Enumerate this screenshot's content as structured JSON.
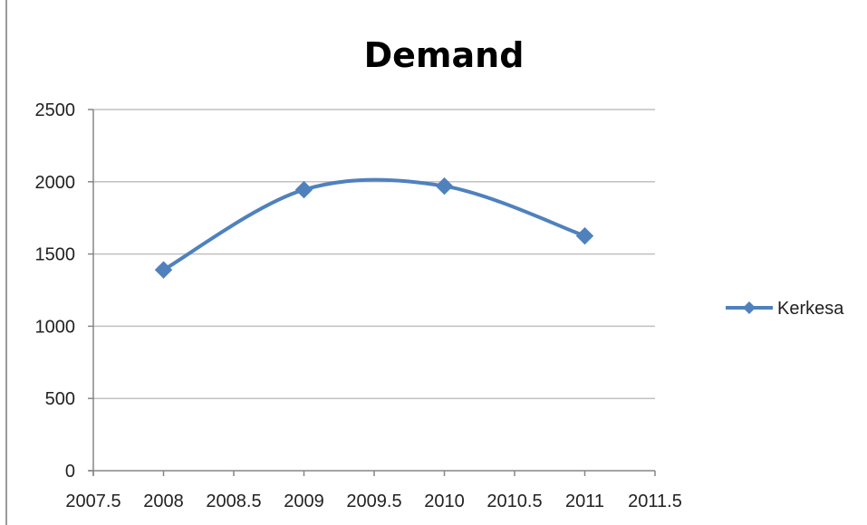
{
  "chart_data": {
    "type": "line",
    "title": "Demand",
    "xlabel": "",
    "ylabel": "",
    "x": [
      2008,
      2009,
      2010,
      2011
    ],
    "series": [
      {
        "name": "Kerkesa",
        "values": [
          1390,
          1945,
          1970,
          1625
        ],
        "color": "#4f81bd",
        "marker": "diamond",
        "smooth": true
      }
    ],
    "xlim": [
      2007.5,
      2011.5
    ],
    "ylim": [
      0,
      2500
    ],
    "x_ticks": [
      2007.5,
      2008,
      2008.5,
      2009,
      2009.5,
      2010,
      2010.5,
      2011,
      2011.5
    ],
    "x_tick_labels": [
      "2007.5",
      "2008",
      "2008.5",
      "2009",
      "2009.5",
      "2010",
      "2010.5",
      "2011",
      "2011.5"
    ],
    "y_ticks": [
      0,
      500,
      1000,
      1500,
      2000,
      2500
    ],
    "y_tick_labels": [
      "0",
      "500",
      "1000",
      "1500",
      "2000",
      "2500"
    ],
    "grid": {
      "horizontal": true,
      "vertical": false,
      "color": "#c0c0c0"
    },
    "axis_color": "#868686",
    "legend": {
      "position": "right"
    }
  }
}
